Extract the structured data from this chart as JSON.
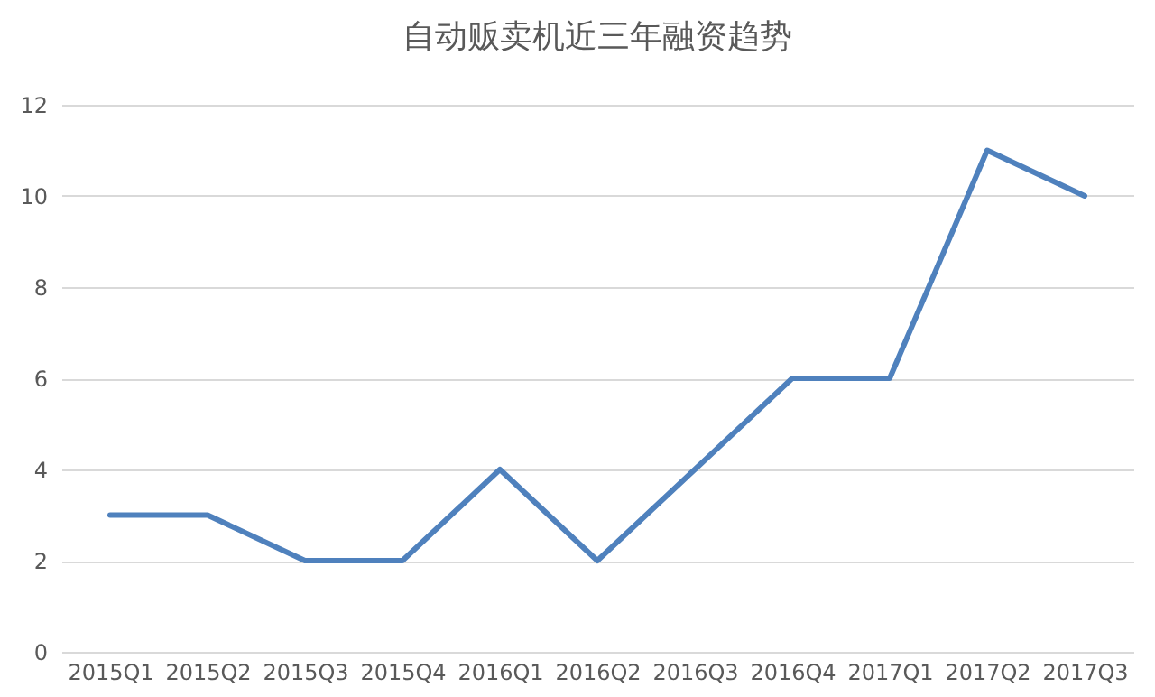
{
  "chart_data": {
    "type": "line",
    "title": "自动贩卖机近三年融资趋势",
    "categories": [
      "2015Q1",
      "2015Q2",
      "2015Q3",
      "2015Q4",
      "2016Q1",
      "2016Q2",
      "2016Q3",
      "2016Q4",
      "2017Q1",
      "2017Q2",
      "2017Q3"
    ],
    "series": [
      {
        "color": "#4f81bd",
        "values": [
          3,
          3,
          2,
          2,
          4,
          2,
          4,
          6,
          6,
          11,
          10
        ]
      }
    ],
    "ylim": [
      0,
      12
    ],
    "yticks": [
      0,
      2,
      4,
      6,
      8,
      10,
      12
    ],
    "grid": "y",
    "marker": "none"
  }
}
